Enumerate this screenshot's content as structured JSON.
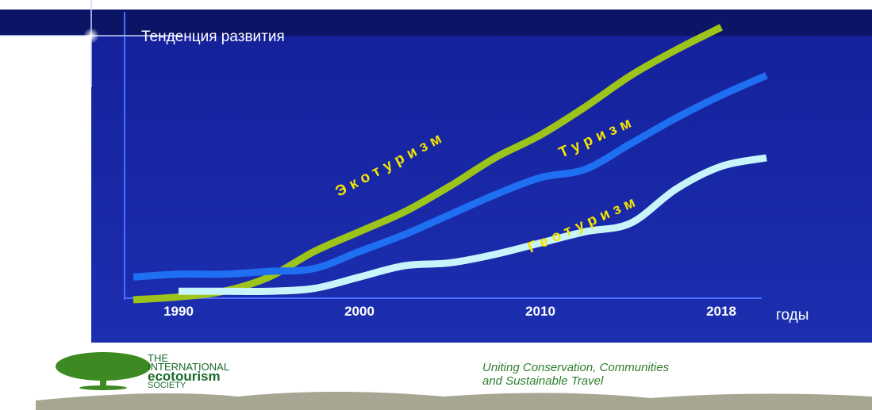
{
  "chart_data": {
    "type": "line",
    "title": "Тенденция развития",
    "x_label": "годы",
    "categories": [
      null,
      "1990",
      null,
      null,
      null,
      "2000",
      null,
      null,
      null,
      "2010",
      null,
      null,
      null,
      "2018",
      null
    ],
    "ylim": [
      0,
      100
    ],
    "series": [
      {
        "name": "Экотуризм",
        "color": "#9dc41a",
        "values": [
          0,
          1,
          3,
          8,
          17,
          24,
          31,
          40,
          50,
          58,
          68,
          79,
          88,
          96,
          null
        ]
      },
      {
        "name": "Туризм",
        "color": "#1f6ff2",
        "values": [
          8,
          9,
          9,
          10,
          11,
          17,
          23,
          30,
          37,
          43,
          46,
          55,
          64,
          72,
          79
        ]
      },
      {
        "name": "Геотуризм",
        "color": "#c8f4fb",
        "values": [
          null,
          3,
          3,
          3,
          4,
          8,
          12,
          13,
          16,
          20,
          24,
          27,
          39,
          47,
          50
        ]
      }
    ]
  },
  "banner": {
    "the": "THE",
    "international": "INTERNATIONAL",
    "ecotourism": "ecotourism",
    "society": "SOCIETY",
    "tagline_1": "Uniting Conservation, Communities",
    "tagline_2": "and Sustainable Travel"
  }
}
